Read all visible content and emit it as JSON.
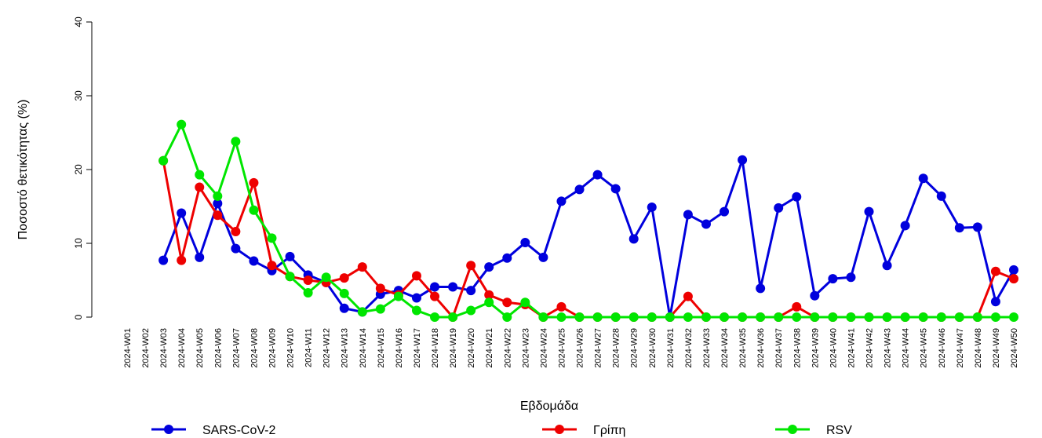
{
  "chart_data": {
    "type": "line",
    "x_label": "Εβδομάδα",
    "y_label": "Ποσοστό θετικότητας (%)",
    "categories": [
      "2024-W01",
      "2024-W02",
      "2024-W03",
      "2024-W04",
      "2024-W05",
      "2024-W06",
      "2024-W07",
      "2024-W08",
      "2024-W09",
      "2024-W10",
      "2024-W11",
      "2024-W12",
      "2024-W13",
      "2024-W14",
      "2024-W15",
      "2024-W16",
      "2024-W17",
      "2024-W18",
      "2024-W19",
      "2024-W20",
      "2024-W21",
      "2024-W22",
      "2024-W23",
      "2024-W24",
      "2024-W25",
      "2024-W26",
      "2024-W27",
      "2024-W28",
      "2024-W29",
      "2024-W30",
      "2024-W31",
      "2024-W32",
      "2024-W33",
      "2024-W34",
      "2024-W35",
      "2024-W36",
      "2024-W37",
      "2024-W38",
      "2024-W39",
      "2024-W40",
      "2024-W41",
      "2024-W42",
      "2024-W43",
      "2024-W44",
      "2024-W45",
      "2024-W46",
      "2024-W47",
      "2024-W48",
      "2024-W49",
      "2024-W50"
    ],
    "series": [
      {
        "name": "SARS-CoV-2",
        "color": "#0000dd",
        "values": [
          null,
          null,
          7.7,
          14.1,
          8.1,
          15.4,
          9.3,
          7.6,
          6.3,
          8.2,
          5.7,
          4.7,
          1.2,
          0.7,
          3.1,
          3.6,
          2.6,
          4.1,
          4.1,
          3.6,
          6.8,
          8.0,
          10.1,
          8.1,
          15.7,
          17.3,
          19.3,
          17.4,
          10.6,
          14.9,
          0,
          13.9,
          12.6,
          14.3,
          21.3,
          3.9,
          14.8,
          16.3,
          2.9,
          5.2,
          5.4,
          14.3,
          7.0,
          12.4,
          18.8,
          16.4,
          12.1,
          12.2,
          2.1,
          6.4
        ]
      },
      {
        "name": "Γρίπη",
        "color": "#ee0000",
        "values": [
          null,
          null,
          21.2,
          7.7,
          17.6,
          13.8,
          11.6,
          18.2,
          7.0,
          5.5,
          5.0,
          4.7,
          5.3,
          6.8,
          3.9,
          3.0,
          5.6,
          2.8,
          0,
          7.0,
          3.0,
          2.0,
          1.7,
          0,
          1.4,
          0,
          0,
          0,
          0,
          0,
          0,
          2.8,
          0,
          0,
          0,
          0,
          0,
          1.4,
          0,
          0,
          0,
          0,
          0,
          0,
          0,
          0,
          0,
          0,
          6.2,
          5.2
        ]
      },
      {
        "name": "RSV",
        "color": "#00e600",
        "values": [
          null,
          null,
          21.2,
          26.1,
          19.3,
          16.4,
          23.8,
          14.5,
          10.7,
          5.5,
          3.3,
          5.4,
          3.2,
          0.7,
          1.1,
          2.8,
          0.9,
          0,
          0,
          0.9,
          2.0,
          0,
          2.0,
          0,
          0,
          0,
          0,
          0,
          0,
          0,
          0,
          0,
          0,
          0,
          0,
          0,
          0,
          0,
          0,
          0,
          0,
          0,
          0,
          0,
          0,
          0,
          0,
          0,
          0,
          0
        ]
      }
    ],
    "ylim": [
      0,
      40
    ],
    "yticks": [
      0,
      10,
      20,
      30,
      40
    ],
    "legend": "bottom"
  }
}
